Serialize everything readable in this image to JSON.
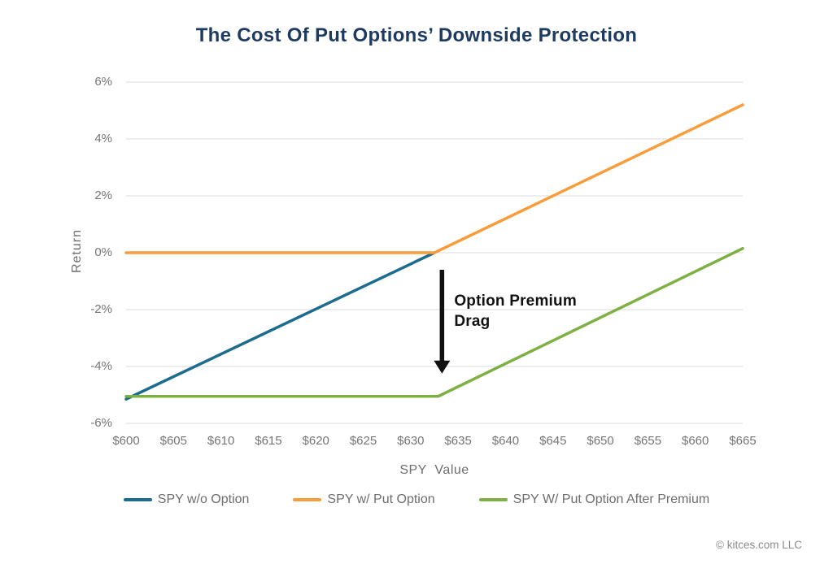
{
  "title": "The Cost Of Put Options’ Downside Protection",
  "footer": "© kitces.com LLC",
  "colors": {
    "background": "#ffffff",
    "title": "#1e3a5f",
    "grid": "#e7e7e7",
    "tick_text": "#757575",
    "axis_label_text": "#6e6e6e",
    "legend_text": "#6e6e6e",
    "annotation": "#111111",
    "footer_text": "#8c8c8c"
  },
  "chart_data": {
    "type": "line",
    "title": "The Cost Of Put Options’ Downside Protection",
    "xlabel": "SPY  Value",
    "ylabel": "Return",
    "xlim": [
      600,
      665
    ],
    "ylim": [
      -6,
      6
    ],
    "grid": "horizontal",
    "legend_position": "bottom",
    "x_tick_values": [
      600,
      605,
      610,
      615,
      620,
      625,
      630,
      635,
      640,
      645,
      650,
      655,
      660,
      665
    ],
    "x_tick_labels": [
      "$600",
      "$605",
      "$610",
      "$615",
      "$620",
      "$625",
      "$630",
      "$635",
      "$640",
      "$645",
      "$650",
      "$655",
      "$660",
      "$665"
    ],
    "y_tick_values": [
      6,
      4,
      2,
      0,
      -2,
      -4,
      -6
    ],
    "y_tick_labels": [
      "6%",
      "4%",
      "2%",
      "0%",
      "-2%",
      "-4%",
      "-6%"
    ],
    "series": [
      {
        "name": "SPY w/o Option",
        "color": "#1b6c8e",
        "points": [
          [
            600,
            -5.15
          ],
          [
            632.5,
            0
          ]
        ]
      },
      {
        "name": "SPY w/ Put Option",
        "color": "#f89d3c",
        "points": [
          [
            600,
            0
          ],
          [
            632.5,
            0
          ],
          [
            665,
            5.2
          ]
        ]
      },
      {
        "name": "SPY W/ Put Option After Premium",
        "color": "#7eb043",
        "points": [
          [
            600,
            -5.05
          ],
          [
            632.9,
            -5.05
          ],
          [
            665,
            0.15
          ]
        ]
      }
    ],
    "annotation": {
      "text_lines": [
        "Option Premium",
        "Drag"
      ],
      "arrow": {
        "x": 633.3,
        "y_from": -0.6,
        "y_to": -4.25
      }
    }
  }
}
